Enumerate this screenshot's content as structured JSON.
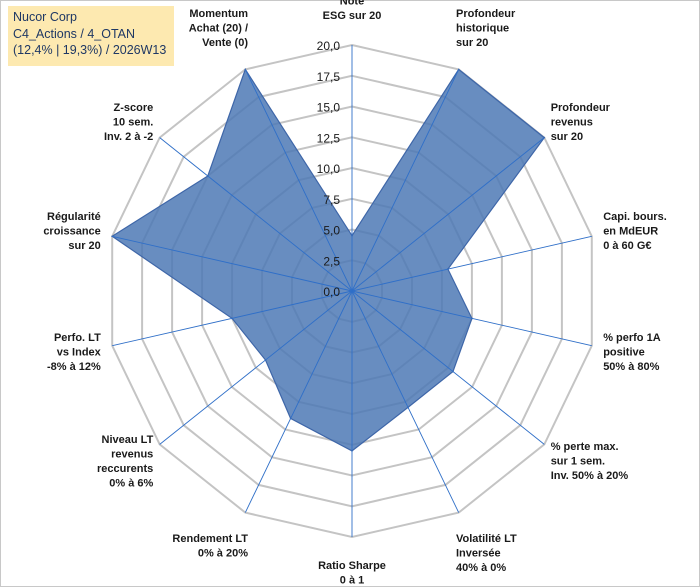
{
  "header": {
    "line1": "Nucor Corp",
    "line2": "C4_Actions / 4_OTAN",
    "line3": "(12,4% | 19,3%) / 2026W13"
  },
  "chart_data": {
    "type": "radar",
    "title": "Nucor Corp",
    "rlim": [
      0,
      20
    ],
    "ticks": [
      "0,0",
      "2,5",
      "5,0",
      "7,5",
      "10,0",
      "12,5",
      "15,0",
      "17,5",
      "20,0"
    ],
    "grid": true,
    "categories": [
      [
        "Note",
        "ESG sur 20"
      ],
      [
        "Profondeur",
        "historique",
        "sur 20"
      ],
      [
        "Profondeur",
        "revenus",
        "sur 20"
      ],
      [
        "Capi. bours.",
        "en MdEUR",
        "0 à 60 G€"
      ],
      [
        "% perfo 1A",
        "positive",
        "50% à 80%"
      ],
      [
        "% perte max.",
        "sur 1 sem.",
        "Inv. 50% à 20%"
      ],
      [
        "Volatilité LT",
        "Inversée",
        "40% à 0%"
      ],
      [
        "Ratio Sharpe",
        "0 à 1"
      ],
      [
        "Rendement LT",
        "0% à 20%"
      ],
      [
        "Niveau LT",
        "revenus",
        "reccurents",
        "0% à 6%"
      ],
      [
        "Perfo. LT",
        "vs Index",
        "-8% à 12%"
      ],
      [
        "Régularité",
        "croissance",
        "sur 20"
      ],
      [
        "Z-score",
        "10 sem.",
        "Inv. 2 à -2"
      ],
      [
        "Momentum",
        "Achat (20) /",
        "Vente (0)"
      ]
    ],
    "series": [
      {
        "name": "Nucor Corp",
        "values": [
          4.5,
          20,
          20,
          8,
          10,
          10.5,
          10.5,
          13,
          11.5,
          9,
          10,
          20,
          15,
          20
        ]
      }
    ],
    "colors": {
      "fill": "#4e79b5",
      "stroke": "#3e66a8",
      "grid": "#c4c4c4",
      "spoke": "#2f6fc8"
    }
  }
}
